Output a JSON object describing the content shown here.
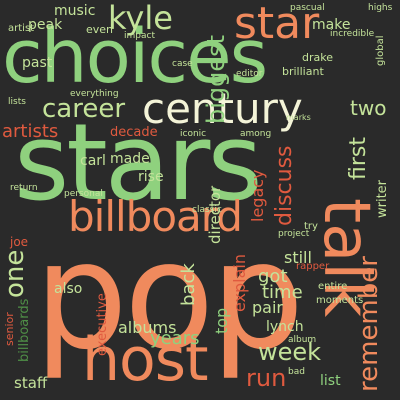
{
  "palette": {
    "background": "#2a2a2a",
    "orange": "#f08a5d",
    "green": "#8fd17e",
    "lightgreen": "#c4e39a",
    "red": "#e05a3f",
    "darkgreen": "#4f8f47"
  },
  "words": {
    "pop": "pop",
    "stars": "stars",
    "choices": "choices",
    "talk": "talk",
    "host": "host",
    "century": "century",
    "star": "star",
    "billboard": "billboard",
    "kyle": "kyle",
    "career": "career",
    "artists": "artists",
    "remember": "remember",
    "first": "first",
    "week": "week",
    "biggest": "biggest",
    "discuss": "discuss",
    "director": "director",
    "run": "run",
    "legacy": "legacy",
    "one": "one",
    "back": "back",
    "explain": "explain",
    "top": "top",
    "got": "got",
    "time": "time",
    "pair": "pair",
    "still": "still",
    "albums": "albums",
    "staff": "staff",
    "years": "years",
    "made": "made",
    "rise": "rise",
    "decade": "decade",
    "carl": "carl",
    "music": "music",
    "peak": "peak",
    "past": "past",
    "make": "make",
    "two": "two",
    "writer": "writer",
    "also": "also",
    "list": "list",
    "lynch": "lynch",
    "executive": "executive",
    "joe": "joe",
    "senior": "senior",
    "billboards": "billboards",
    "editor": "editor",
    "brilliant": "brilliant",
    "global": "global",
    "incredible": "incredible",
    "artist": "artist",
    "even": "even",
    "drake": "drake",
    "pascual": "pascual",
    "highs": "highs",
    "lists": "lists",
    "everything": "everything",
    "impact": "impact",
    "case": "case",
    "among": "among",
    "iconic": "iconic",
    "return": "return",
    "personal": "personal",
    "classic": "classic",
    "project": "project",
    "try": "try",
    "rapper": "rapper",
    "entire": "entire",
    "moments": "moments",
    "album": "album",
    "bad": "bad",
    "marks": "marks"
  }
}
